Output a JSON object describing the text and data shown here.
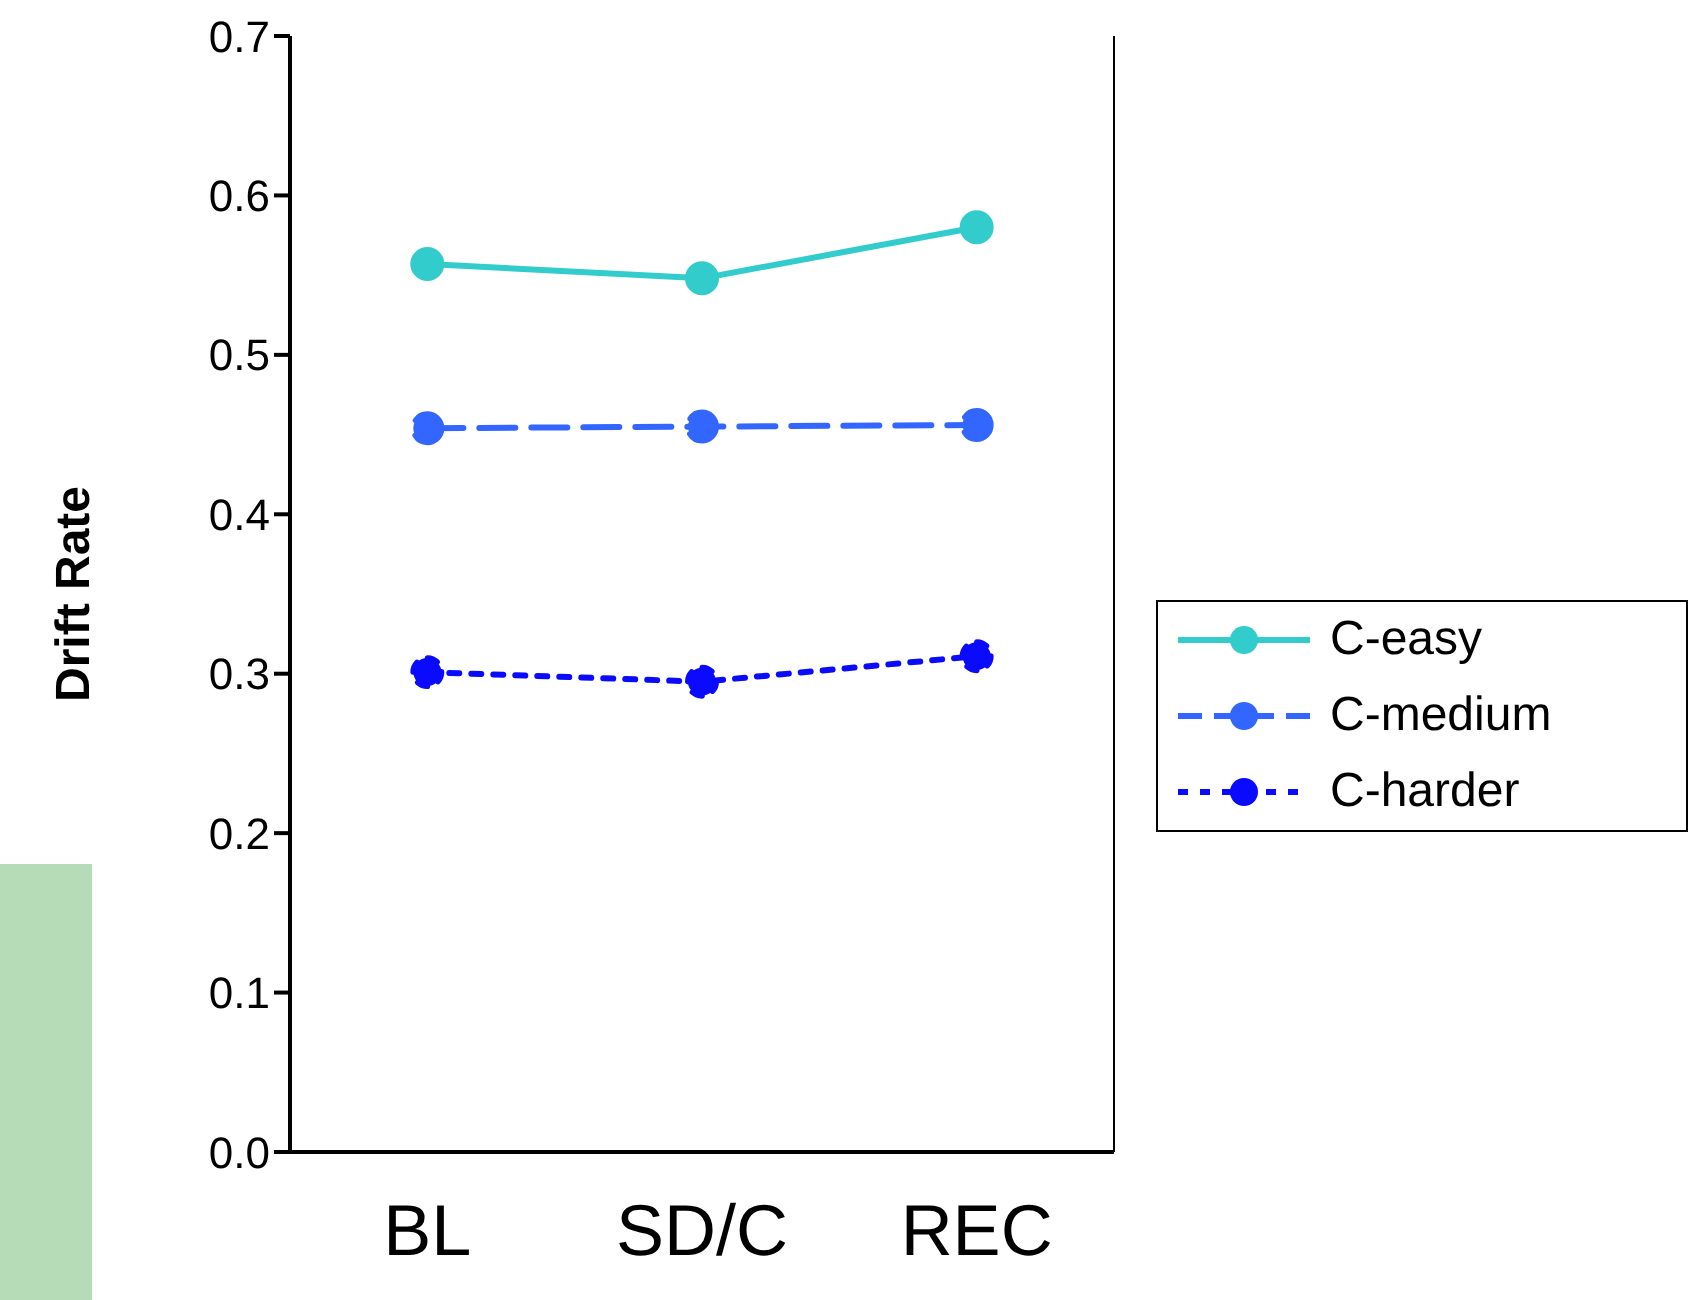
{
  "chart_data": {
    "type": "line",
    "ylabel": "Drift Rate",
    "categories": [
      "BL",
      "SD/C",
      "REC"
    ],
    "ylim": [
      0,
      0.7
    ],
    "yticks": [
      "0.0",
      0.1,
      0.2,
      0.3,
      0.4,
      0.5,
      0.6,
      0.7
    ],
    "legend": "right",
    "marker": "circle",
    "grid": false,
    "series": [
      {
        "name": "C-easy",
        "color": "#33cccc",
        "line_style": "solid",
        "values": [
          0.557,
          0.548,
          0.58
        ]
      },
      {
        "name": "C-medium",
        "color": "#3366ff",
        "line_style": "dashed",
        "values": [
          0.454,
          0.455,
          0.456
        ]
      },
      {
        "name": "C-harder",
        "color": "#0a0aff",
        "line_style": "dotted",
        "values": [
          0.301,
          0.295,
          0.311
        ]
      }
    ]
  }
}
